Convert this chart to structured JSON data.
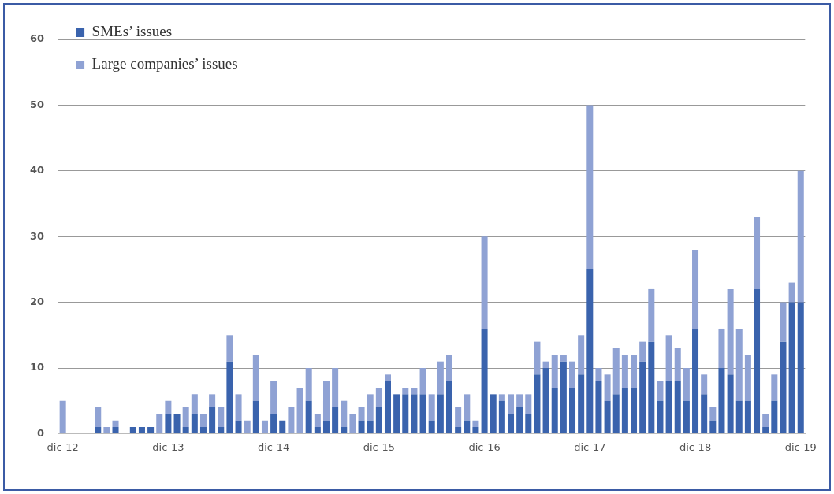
{
  "chart_data": {
    "type": "bar",
    "stacked": true,
    "categories": [
      "dic-12",
      null,
      null,
      null,
      null,
      null,
      null,
      null,
      null,
      null,
      null,
      null,
      "dic-13",
      null,
      null,
      null,
      null,
      null,
      null,
      null,
      null,
      null,
      null,
      null,
      "dic-14",
      null,
      null,
      null,
      null,
      null,
      null,
      null,
      null,
      null,
      null,
      null,
      "dic-15",
      null,
      null,
      null,
      null,
      null,
      null,
      null,
      null,
      null,
      null,
      null,
      "dic-16",
      null,
      null,
      null,
      null,
      null,
      null,
      null,
      null,
      null,
      null,
      null,
      "dic-17",
      null,
      null,
      null,
      null,
      null,
      null,
      null,
      null,
      null,
      null,
      null,
      "dic-18",
      null,
      null,
      null,
      null,
      null,
      null,
      null,
      null,
      null,
      null,
      null,
      "dic-19"
    ],
    "series": [
      {
        "name": "SMEs’ issues",
        "color": "#3a63ad",
        "values": [
          0,
          0,
          0,
          0,
          1,
          0,
          1,
          0,
          1,
          1,
          1,
          0,
          3,
          3,
          1,
          3,
          1,
          4,
          1,
          11,
          2,
          0,
          5,
          0,
          3,
          2,
          0,
          0,
          5,
          1,
          2,
          4,
          1,
          0,
          2,
          2,
          4,
          8,
          6,
          6,
          6,
          6,
          2,
          6,
          8,
          1,
          2,
          1,
          16,
          6,
          5,
          3,
          4,
          3,
          9,
          10,
          7,
          11,
          7,
          9,
          25,
          8,
          5,
          6,
          7,
          7,
          11,
          14,
          5,
          8,
          8,
          5,
          16,
          6,
          2,
          10,
          9,
          5,
          5,
          22,
          1,
          5,
          14,
          20,
          20
        ]
      },
      {
        "name": "Large companies’ issues",
        "color": "#8fa2d4",
        "values": [
          5,
          0,
          0,
          0,
          3,
          1,
          1,
          0,
          0,
          0,
          0,
          3,
          2,
          0,
          3,
          3,
          2,
          2,
          3,
          4,
          4,
          2,
          7,
          2,
          5,
          0,
          4,
          7,
          5,
          2,
          6,
          6,
          4,
          3,
          2,
          4,
          3,
          1,
          0,
          1,
          1,
          4,
          4,
          5,
          4,
          3,
          4,
          1,
          14,
          0,
          1,
          3,
          2,
          3,
          5,
          1,
          5,
          1,
          4,
          6,
          25,
          2,
          4,
          7,
          5,
          5,
          3,
          8,
          3,
          7,
          5,
          5,
          12,
          3,
          2,
          6,
          13,
          11,
          7,
          11,
          2,
          4,
          6,
          3,
          20
        ]
      }
    ],
    "ylim": [
      0,
      60
    ],
    "yticks": [
      0,
      10,
      20,
      30,
      40,
      50,
      60
    ],
    "grid": "y",
    "legend": "top left"
  }
}
